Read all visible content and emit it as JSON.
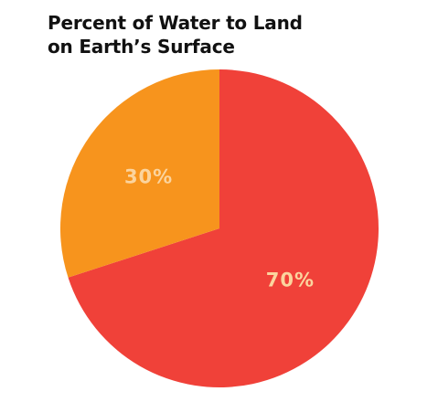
{
  "chart_data": {
    "type": "pie",
    "title": [
      "Percent of Water to Land",
      "on Earth’s Surface"
    ],
    "slices": [
      {
        "value": 70,
        "label": "70%",
        "color": "#f04139"
      },
      {
        "value": 30,
        "label": "30%",
        "color": "#f7941d"
      }
    ],
    "label_color": "#fbd49e",
    "start": "top",
    "direction": "clockwise",
    "legend": "none"
  }
}
